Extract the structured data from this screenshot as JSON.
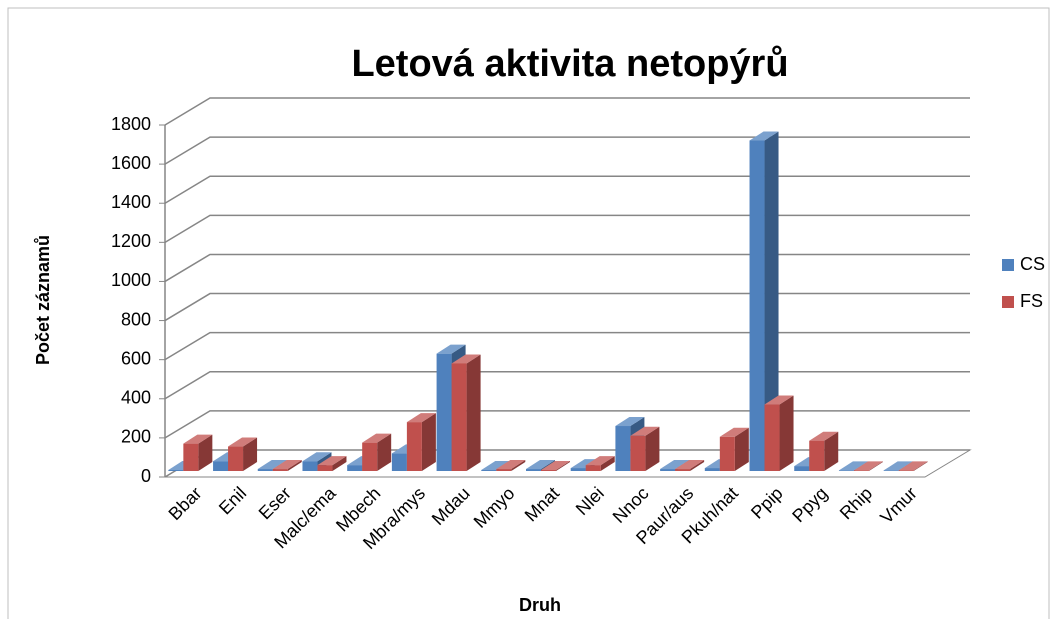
{
  "chart_data": {
    "type": "bar3d",
    "title": "Letová aktivita netopýrů",
    "x_label": "Druh",
    "y_label": "Počet záznamů",
    "categories": [
      "Bbar",
      "Enil",
      "Eser",
      "Malc/ema",
      "Mbech",
      "Mbra/mys",
      "Mdau",
      "Mmyo",
      "Mnat",
      "Nlei",
      "Nnoc",
      "Paur/aus",
      "Pkuh/nat",
      "Ppip",
      "Ppyg",
      "Rhip",
      "Vmur"
    ],
    "series": [
      {
        "name": "CS",
        "color": "#4f81bd",
        "values": [
          5,
          50,
          10,
          50,
          30,
          90,
          600,
          5,
          10,
          15,
          230,
          10,
          15,
          1690,
          25,
          3,
          3
        ]
      },
      {
        "name": "FS",
        "color": "#c0504d",
        "values": [
          140,
          125,
          10,
          30,
          145,
          250,
          550,
          10,
          5,
          30,
          180,
          10,
          175,
          340,
          155,
          3,
          3
        ]
      }
    ],
    "ylim": [
      0,
      1800
    ],
    "yticks": [
      0,
      200,
      400,
      600,
      800,
      1000,
      1200,
      1400,
      1600,
      1800
    ],
    "grid": true,
    "legend": "right"
  }
}
